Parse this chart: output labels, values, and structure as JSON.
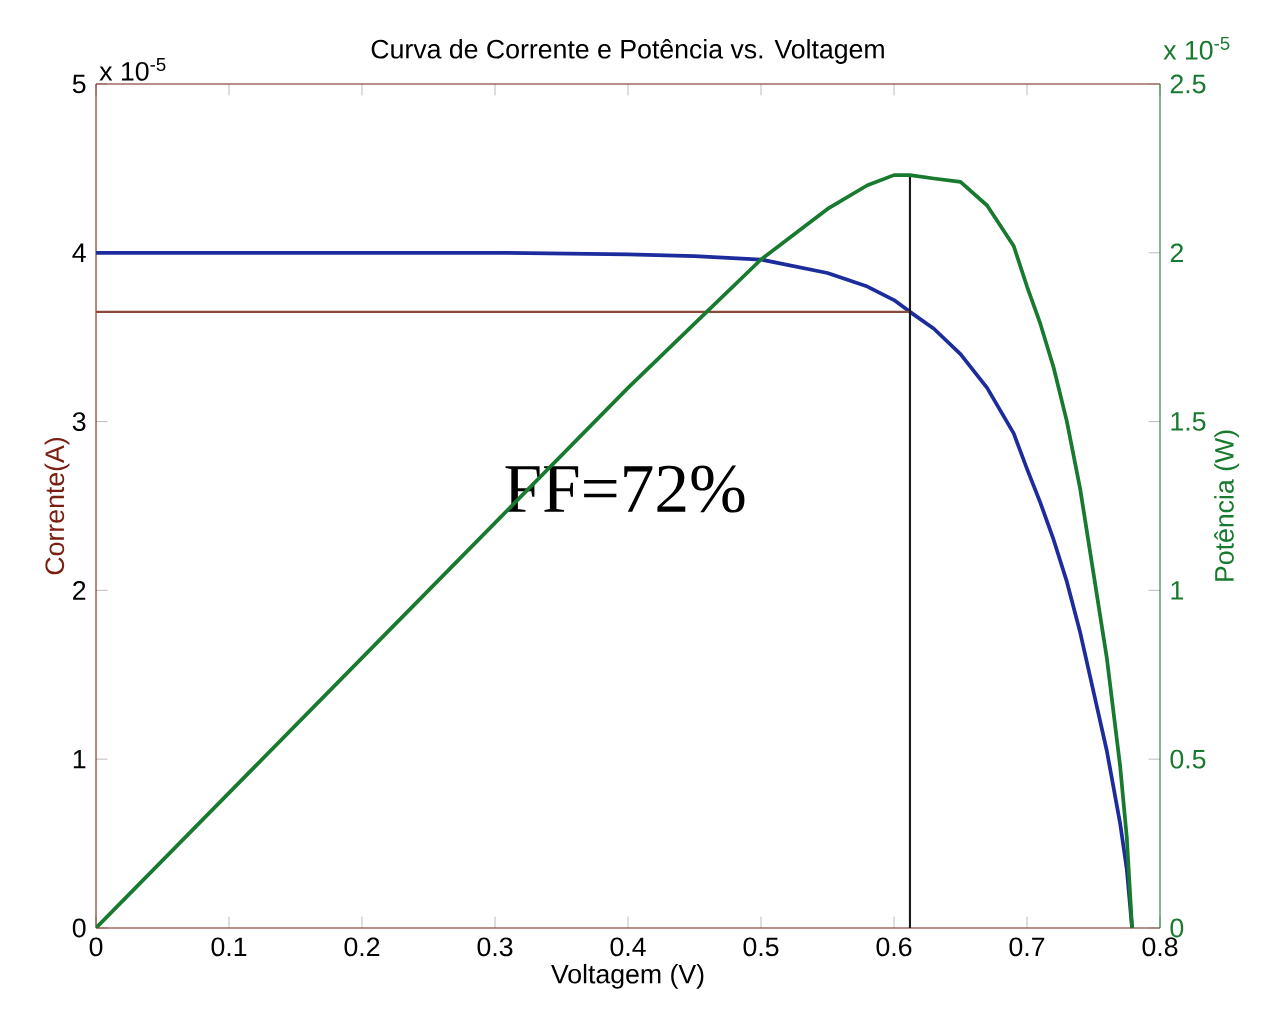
{
  "chart_data": {
    "type": "line",
    "title": "Curva de Corrente e Potência vs. Voltagem",
    "xlabel": "Voltagem (V)",
    "ylabel": "Corrente(A)",
    "y2label": "Potência (W)",
    "x": [
      0,
      0.1,
      0.2,
      0.3,
      0.4,
      0.45,
      0.5,
      0.55,
      0.58,
      0.6,
      0.612,
      0.63,
      0.65,
      0.67,
      0.69,
      0.7,
      0.71,
      0.72,
      0.73,
      0.74,
      0.75,
      0.76,
      0.77,
      0.775,
      0.779
    ],
    "series": [
      {
        "axis": "y",
        "color": "#1c2c9c",
        "values": [
          4.0,
          4.0,
          4.0,
          4.0,
          3.99,
          3.98,
          3.96,
          3.88,
          3.8,
          3.72,
          3.65,
          3.55,
          3.4,
          3.2,
          2.93,
          2.72,
          2.52,
          2.3,
          2.05,
          1.75,
          1.4,
          1.05,
          0.62,
          0.35,
          0
        ]
      },
      {
        "axis": "y2",
        "color": "#177a2e",
        "values": [
          0,
          0.4,
          0.8,
          1.2,
          1.6,
          1.79,
          1.98,
          2.13,
          2.2,
          2.23,
          2.23,
          2.22,
          2.21,
          2.14,
          2.02,
          1.9,
          1.79,
          1.66,
          1.5,
          1.3,
          1.05,
          0.8,
          0.48,
          0.27,
          0
        ]
      }
    ],
    "xlim": [
      0,
      0.8
    ],
    "xticks": [
      0,
      0.1,
      0.2,
      0.3,
      0.4,
      0.5,
      0.6,
      0.7,
      0.8
    ],
    "ylim": [
      0,
      5
    ],
    "yticks": [
      0,
      1,
      2,
      3,
      4,
      5
    ],
    "y2lim": [
      0,
      2.5
    ],
    "y2ticks": [
      0,
      0.5,
      1,
      1.5,
      2,
      2.5
    ],
    "ref_lines": [
      {
        "axis": "x",
        "value": 0.612,
        "color": "#1a1a1a"
      },
      {
        "axis": "y",
        "value": 3.65,
        "color": "#8a4a3a"
      }
    ],
    "annotations": [
      "FF=72%",
      "x 10$^{-5}$",
      "x 10$^{-5}$"
    ],
    "line_style": "solid"
  }
}
